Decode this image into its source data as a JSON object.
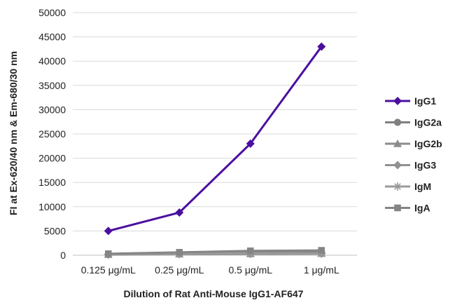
{
  "chart_data": {
    "type": "line",
    "title": "",
    "xlabel": "Dilution of Rat Anti-Mouse IgG1-AF647",
    "ylabel": "FI at Ex-620/40 nm & Em-680/30 nm",
    "categories": [
      "0.125 μg/mL",
      "0.25 μg/mL",
      "0.5 μg/mL",
      "1 μg/mL"
    ],
    "ylim": [
      0,
      50000
    ],
    "yticks": [
      0,
      5000,
      10000,
      15000,
      20000,
      25000,
      30000,
      35000,
      40000,
      45000,
      50000
    ],
    "grid": "horizontal",
    "legend_position": "right",
    "series": [
      {
        "name": "IgG1",
        "values": [
          5000,
          8800,
          23000,
          43000
        ],
        "color": "#4b0fa0",
        "marker": "diamond"
      },
      {
        "name": "IgG2a",
        "values": [
          200,
          300,
          500,
          600
        ],
        "color": "#808080",
        "marker": "circle"
      },
      {
        "name": "IgG2b",
        "values": [
          150,
          250,
          300,
          350
        ],
        "color": "#8c8c8c",
        "marker": "triangle"
      },
      {
        "name": "IgG3",
        "values": [
          100,
          200,
          250,
          300
        ],
        "color": "#909090",
        "marker": "diamond"
      },
      {
        "name": "IgM",
        "values": [
          150,
          300,
          400,
          400
        ],
        "color": "#9a9a9a",
        "marker": "asterisk"
      },
      {
        "name": "IgA",
        "values": [
          300,
          600,
          900,
          1000
        ],
        "color": "#858585",
        "marker": "square"
      }
    ]
  }
}
